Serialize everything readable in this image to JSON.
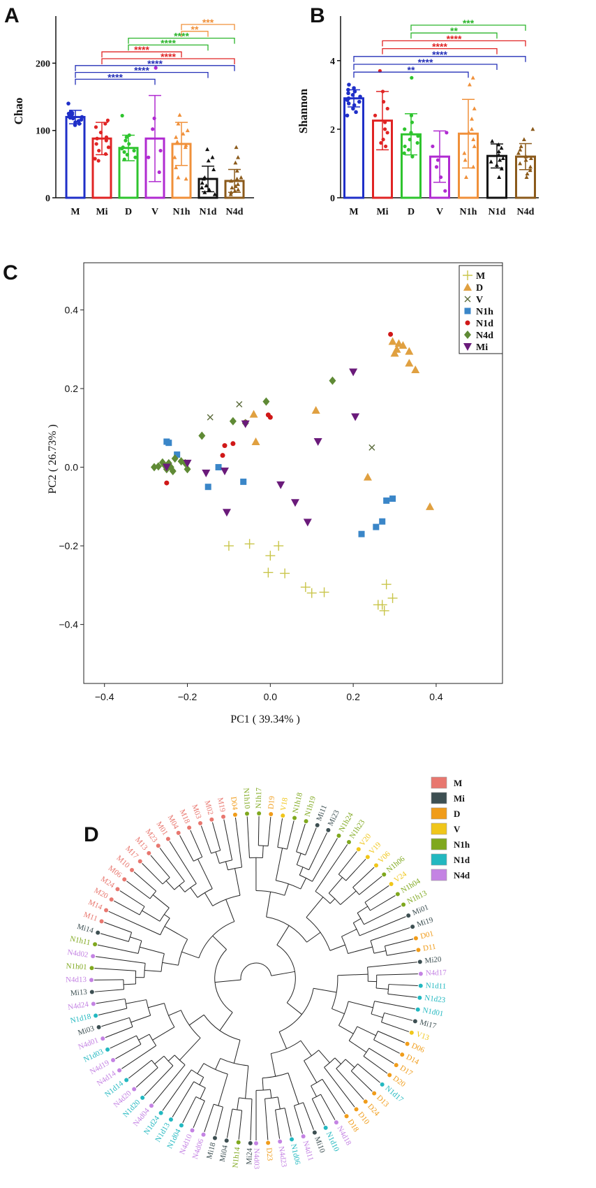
{
  "panels": {
    "a": "A",
    "b": "B",
    "c": "C",
    "d": "D"
  },
  "colors": {
    "M": "#1f2fc8",
    "Mi": "#e02424",
    "D": "#2ec42e",
    "V": "#b02bd1",
    "N1h": "#f0903a",
    "N1d": "#111111",
    "N4d": "#8b5a1b",
    "sig_blue": "#2430b8",
    "sig_red": "#e02424",
    "sig_green": "#2bb52b",
    "sig_orange": "#f0903a"
  },
  "chart_data": [
    {
      "type": "bar",
      "panel": "A",
      "ylabel": "Chao",
      "categories": [
        "M",
        "Mi",
        "D",
        "V",
        "N1h",
        "N1d",
        "N4d"
      ],
      "values": [
        120,
        88,
        74,
        88,
        80,
        28,
        25
      ],
      "errors": [
        10,
        24,
        19,
        64,
        32,
        19,
        17
      ],
      "ylim": [
        0,
        270
      ],
      "yticks": [
        0,
        100,
        200
      ],
      "points": [
        [
          140,
          128,
          125,
          124,
          122,
          121,
          120,
          119,
          118,
          116,
          114,
          110,
          108,
          126,
          112
        ],
        [
          115,
          110,
          105,
          97,
          90,
          88,
          85,
          80,
          75,
          70,
          65,
          58,
          55
        ],
        [
          122,
          93,
          90,
          85,
          80,
          75,
          73,
          70,
          68,
          64,
          60,
          57
        ],
        [
          193,
          118,
          102,
          70,
          60,
          38
        ],
        [
          123,
          110,
          100,
          95,
          90,
          83,
          78,
          75,
          60,
          45,
          30,
          28
        ],
        [
          72,
          60,
          55,
          42,
          30,
          28,
          22,
          18,
          15,
          12,
          8,
          5
        ],
        [
          75,
          60,
          52,
          40,
          30,
          28,
          25,
          20,
          17,
          15,
          12,
          10,
          8,
          5
        ]
      ],
      "comparisons": [
        {
          "from": "N1h",
          "to": "N4d",
          "label": "***",
          "color": "orange"
        },
        {
          "from": "N1h",
          "to": "N1d",
          "label": "**",
          "color": "orange"
        },
        {
          "from": "D",
          "to": "N4d",
          "label": "****",
          "color": "green"
        },
        {
          "from": "D",
          "to": "N1d",
          "label": "****",
          "color": "green"
        },
        {
          "from": "Mi",
          "to": "N1h",
          "label": "****",
          "color": "red"
        },
        {
          "from": "Mi",
          "to": "N4d",
          "label": "****",
          "color": "red"
        },
        {
          "from": "M",
          "to": "N4d",
          "label": "****",
          "color": "blue"
        },
        {
          "from": "M",
          "to": "N1d",
          "label": "****",
          "color": "blue"
        },
        {
          "from": "M",
          "to": "V",
          "label": "****",
          "color": "blue"
        }
      ]
    },
    {
      "type": "bar",
      "panel": "B",
      "ylabel": "Shannon",
      "categories": [
        "M",
        "Mi",
        "D",
        "V",
        "N1h",
        "N1d",
        "N4d"
      ],
      "values": [
        2.9,
        2.25,
        1.85,
        1.2,
        1.87,
        1.22,
        1.2
      ],
      "errors": [
        0.25,
        0.85,
        0.6,
        0.75,
        1.0,
        0.35,
        0.38
      ],
      "ylim": [
        0,
        5.3
      ],
      "yticks": [
        0,
        2,
        4
      ],
      "points": [
        [
          3.3,
          3.2,
          3.1,
          3.05,
          3.0,
          2.95,
          2.9,
          2.85,
          2.8,
          2.7,
          2.6,
          2.5,
          2.4,
          3.15,
          2.75
        ],
        [
          3.7,
          3.1,
          2.8,
          2.6,
          2.4,
          2.2,
          2.0,
          1.9,
          1.7,
          1.6,
          1.5
        ],
        [
          3.5,
          2.4,
          2.2,
          2.0,
          1.9,
          1.8,
          1.7,
          1.6,
          1.5,
          1.4,
          1.3,
          1.2
        ],
        [
          1.9,
          1.5,
          1.1,
          0.9,
          0.6,
          0.2
        ],
        [
          3.5,
          3.3,
          2.6,
          2.3,
          2.0,
          1.9,
          1.7,
          1.5,
          1.3,
          1.1,
          0.9,
          0.6
        ],
        [
          1.65,
          1.55,
          1.45,
          1.35,
          1.25,
          1.15,
          1.1,
          1.05,
          0.95,
          0.85,
          0.6
        ],
        [
          2.0,
          1.7,
          1.5,
          1.4,
          1.3,
          1.2,
          1.15,
          1.1,
          1.0,
          0.9,
          0.8,
          0.7,
          0.6
        ]
      ],
      "comparisons": [
        {
          "from": "D",
          "to": "N4d",
          "label": "***",
          "color": "green"
        },
        {
          "from": "D",
          "to": "N1d",
          "label": "**",
          "color": "green"
        },
        {
          "from": "Mi",
          "to": "N4d",
          "label": "****",
          "color": "red"
        },
        {
          "from": "Mi",
          "to": "N1d",
          "label": "****",
          "color": "red"
        },
        {
          "from": "M",
          "to": "N4d",
          "label": "****",
          "color": "blue"
        },
        {
          "from": "M",
          "to": "N1d",
          "label": "****",
          "color": "blue"
        },
        {
          "from": "M",
          "to": "N1h",
          "label": "**",
          "color": "blue"
        }
      ]
    },
    {
      "type": "scatter",
      "panel": "C",
      "xlabel": "PC1 ( 39.34% )",
      "ylabel": "PC2 ( 26.73% )",
      "xlim": [
        -0.45,
        0.56
      ],
      "ylim": [
        -0.55,
        0.52
      ],
      "xticks": [
        -0.4,
        -0.2,
        0.0,
        0.2,
        0.4
      ],
      "yticks": [
        -0.4,
        -0.2,
        0.0,
        0.2,
        0.4
      ],
      "legend_position": "top-right",
      "series": [
        {
          "name": "M",
          "marker": "plus",
          "color": "#c9c54a",
          "points": [
            [
              -0.1,
              -0.2
            ],
            [
              -0.05,
              -0.195
            ],
            [
              0.02,
              -0.2
            ],
            [
              0.0,
              -0.225
            ],
            [
              -0.005,
              -0.268
            ],
            [
              0.035,
              -0.27
            ],
            [
              0.085,
              -0.305
            ],
            [
              0.1,
              -0.32
            ],
            [
              0.13,
              -0.318
            ],
            [
              0.26,
              -0.35
            ],
            [
              0.27,
              -0.35
            ],
            [
              0.275,
              -0.365
            ],
            [
              0.295,
              -0.333
            ],
            [
              0.28,
              -0.298
            ]
          ]
        },
        {
          "name": "D",
          "marker": "triangle",
          "color": "#e0a040",
          "points": [
            [
              -0.04,
              0.135
            ],
            [
              -0.035,
              0.065
            ],
            [
              0.11,
              0.145
            ],
            [
              0.235,
              -0.025
            ],
            [
              0.295,
              0.32
            ],
            [
              0.31,
              0.315
            ],
            [
              0.305,
              0.3
            ],
            [
              0.32,
              0.31
            ],
            [
              0.335,
              0.295
            ],
            [
              0.335,
              0.265
            ],
            [
              0.35,
              0.248
            ],
            [
              0.385,
              -0.1
            ],
            [
              0.3,
              0.29
            ]
          ]
        },
        {
          "name": "V",
          "marker": "cross",
          "color": "#5a6a3a",
          "points": [
            [
              -0.145,
              0.127
            ],
            [
              -0.075,
              0.16
            ],
            [
              0.245,
              0.05
            ]
          ]
        },
        {
          "name": "N1h",
          "marker": "square",
          "color": "#3a86c8",
          "points": [
            [
              -0.25,
              0.065
            ],
            [
              -0.245,
              0.062
            ],
            [
              -0.225,
              0.032
            ],
            [
              -0.15,
              -0.05
            ],
            [
              -0.125,
              0.0
            ],
            [
              -0.065,
              -0.037
            ],
            [
              0.22,
              -0.17
            ],
            [
              0.255,
              -0.152
            ],
            [
              0.27,
              -0.138
            ],
            [
              0.28,
              -0.085
            ],
            [
              0.295,
              -0.08
            ]
          ]
        },
        {
          "name": "N1d",
          "marker": "circle",
          "color": "#d01818",
          "points": [
            [
              -0.25,
              -0.04
            ],
            [
              -0.115,
              0.03
            ],
            [
              -0.11,
              0.055
            ],
            [
              -0.09,
              0.06
            ],
            [
              -0.06,
              0.115
            ],
            [
              -0.005,
              0.133
            ],
            [
              0.0,
              0.127
            ],
            [
              0.29,
              0.338
            ]
          ]
        },
        {
          "name": "N4d",
          "marker": "diamond",
          "color": "#5f8a35",
          "points": [
            [
              -0.28,
              0.0
            ],
            [
              -0.27,
              0.002
            ],
            [
              -0.26,
              0.012
            ],
            [
              -0.255,
              0.005
            ],
            [
              -0.25,
              -0.005
            ],
            [
              -0.245,
              0.01
            ],
            [
              -0.24,
              0.0
            ],
            [
              -0.235,
              -0.01
            ],
            [
              -0.23,
              0.022
            ],
            [
              -0.215,
              0.015
            ],
            [
              -0.205,
              0.01
            ],
            [
              -0.2,
              -0.005
            ],
            [
              -0.165,
              0.08
            ],
            [
              -0.09,
              0.117
            ],
            [
              -0.06,
              0.112
            ],
            [
              -0.01,
              0.167
            ],
            [
              0.15,
              0.22
            ]
          ]
        },
        {
          "name": "Mi",
          "marker": "triangle-down",
          "color": "#6a1a7a",
          "points": [
            [
              -0.25,
              0.0
            ],
            [
              -0.2,
              0.01
            ],
            [
              -0.155,
              -0.015
            ],
            [
              -0.11,
              -0.01
            ],
            [
              -0.105,
              -0.115
            ],
            [
              -0.06,
              0.11
            ],
            [
              0.025,
              -0.045
            ],
            [
              0.06,
              -0.09
            ],
            [
              0.09,
              -0.14
            ],
            [
              0.115,
              0.065
            ],
            [
              0.2,
              0.242
            ],
            [
              0.205,
              0.128
            ]
          ]
        }
      ]
    },
    {
      "type": "dendrogram",
      "panel": "D",
      "legend": [
        {
          "name": "M",
          "color": "#e8776f"
        },
        {
          "name": "Mi",
          "color": "#3d4f52"
        },
        {
          "name": "D",
          "color": "#f09c1a"
        },
        {
          "name": "V",
          "color": "#f0c61a"
        },
        {
          "name": "N1h",
          "color": "#7fa81e"
        },
        {
          "name": "N1d",
          "color": "#22b8c0"
        },
        {
          "name": "N4d",
          "color": "#c483e3"
        }
      ],
      "leaves": [
        {
          "label": "Mi24",
          "group": "Mi"
        },
        {
          "label": "N1h14",
          "group": "N1h"
        },
        {
          "label": "Mi04",
          "group": "Mi"
        },
        {
          "label": "Mi18",
          "group": "Mi"
        },
        {
          "label": "N4d06",
          "group": "N4d"
        },
        {
          "label": "N4d10",
          "group": "N4d"
        },
        {
          "label": "N1d04",
          "group": "N1d"
        },
        {
          "label": "N1d13",
          "group": "N1d"
        },
        {
          "label": "N1d24",
          "group": "N1d"
        },
        {
          "label": "N4d04",
          "group": "N4d"
        },
        {
          "label": "N1d20",
          "group": "N1d"
        },
        {
          "label": "N4d20",
          "group": "N4d"
        },
        {
          "label": "N1d14",
          "group": "N1d"
        },
        {
          "label": "N4d14",
          "group": "N4d"
        },
        {
          "label": "N4d19",
          "group": "N4d"
        },
        {
          "label": "N1d03",
          "group": "N1d"
        },
        {
          "label": "N4d01",
          "group": "N4d"
        },
        {
          "label": "Mi03",
          "group": "Mi"
        },
        {
          "label": "N1d18",
          "group": "N1d"
        },
        {
          "label": "N4d24",
          "group": "N4d"
        },
        {
          "label": "Mi13",
          "group": "Mi"
        },
        {
          "label": "N4d13",
          "group": "N4d"
        },
        {
          "label": "N1h01",
          "group": "N1h"
        },
        {
          "label": "N4d02",
          "group": "N4d"
        },
        {
          "label": "N1h11",
          "group": "N1h"
        },
        {
          "label": "Mi14",
          "group": "Mi"
        },
        {
          "label": "M11",
          "group": "M"
        },
        {
          "label": "M14",
          "group": "M"
        },
        {
          "label": "M20",
          "group": "M"
        },
        {
          "label": "M24",
          "group": "M"
        },
        {
          "label": "M06",
          "group": "M"
        },
        {
          "label": "M10",
          "group": "M"
        },
        {
          "label": "M17",
          "group": "M"
        },
        {
          "label": "M13",
          "group": "M"
        },
        {
          "label": "M23",
          "group": "M"
        },
        {
          "label": "M01",
          "group": "M"
        },
        {
          "label": "M04",
          "group": "M"
        },
        {
          "label": "M18",
          "group": "M"
        },
        {
          "label": "M03",
          "group": "M"
        },
        {
          "label": "M02",
          "group": "M"
        },
        {
          "label": "M19",
          "group": "M"
        },
        {
          "label": "D04",
          "group": "D"
        },
        {
          "label": "N1h10",
          "group": "N1h"
        },
        {
          "label": "N1h17",
          "group": "N1h"
        },
        {
          "label": "D19",
          "group": "D"
        },
        {
          "label": "V18",
          "group": "V"
        },
        {
          "label": "N1h18",
          "group": "N1h"
        },
        {
          "label": "N1h19",
          "group": "N1h"
        },
        {
          "label": "Mi11",
          "group": "Mi"
        },
        {
          "label": "Mi23",
          "group": "Mi"
        },
        {
          "label": "N1h24",
          "group": "N1h"
        },
        {
          "label": "N1h23",
          "group": "N1h"
        },
        {
          "label": "V20",
          "group": "V"
        },
        {
          "label": "V19",
          "group": "V"
        },
        {
          "label": "V06",
          "group": "V"
        },
        {
          "label": "N1h06",
          "group": "N1h"
        },
        {
          "label": "V24",
          "group": "V"
        },
        {
          "label": "N1h04",
          "group": "N1h"
        },
        {
          "label": "N1h13",
          "group": "N1h"
        },
        {
          "label": "Mi01",
          "group": "Mi"
        },
        {
          "label": "Mi19",
          "group": "Mi"
        },
        {
          "label": "D01",
          "group": "D"
        },
        {
          "label": "D11",
          "group": "D"
        },
        {
          "label": "Mi20",
          "group": "Mi"
        },
        {
          "label": "N4d17",
          "group": "N4d"
        },
        {
          "label": "N1d11",
          "group": "N1d"
        },
        {
          "label": "N1d23",
          "group": "N1d"
        },
        {
          "label": "N1d01",
          "group": "N1d"
        },
        {
          "label": "Mi17",
          "group": "Mi"
        },
        {
          "label": "V13",
          "group": "V"
        },
        {
          "label": "D06",
          "group": "D"
        },
        {
          "label": "D14",
          "group": "D"
        },
        {
          "label": "D17",
          "group": "D"
        },
        {
          "label": "D20",
          "group": "D"
        },
        {
          "label": "N1d17",
          "group": "N1d"
        },
        {
          "label": "D13",
          "group": "D"
        },
        {
          "label": "D24",
          "group": "D"
        },
        {
          "label": "D10",
          "group": "D"
        },
        {
          "label": "D18",
          "group": "D"
        },
        {
          "label": "N4d18",
          "group": "N4d"
        },
        {
          "label": "N1d10",
          "group": "N1d"
        },
        {
          "label": "Mi10",
          "group": "Mi"
        },
        {
          "label": "N4d11",
          "group": "N4d"
        },
        {
          "label": "N1d06",
          "group": "N1d"
        },
        {
          "label": "N4d23",
          "group": "N4d"
        },
        {
          "label": "D23",
          "group": "D"
        },
        {
          "label": "N4d03",
          "group": "N4d"
        }
      ]
    }
  ]
}
